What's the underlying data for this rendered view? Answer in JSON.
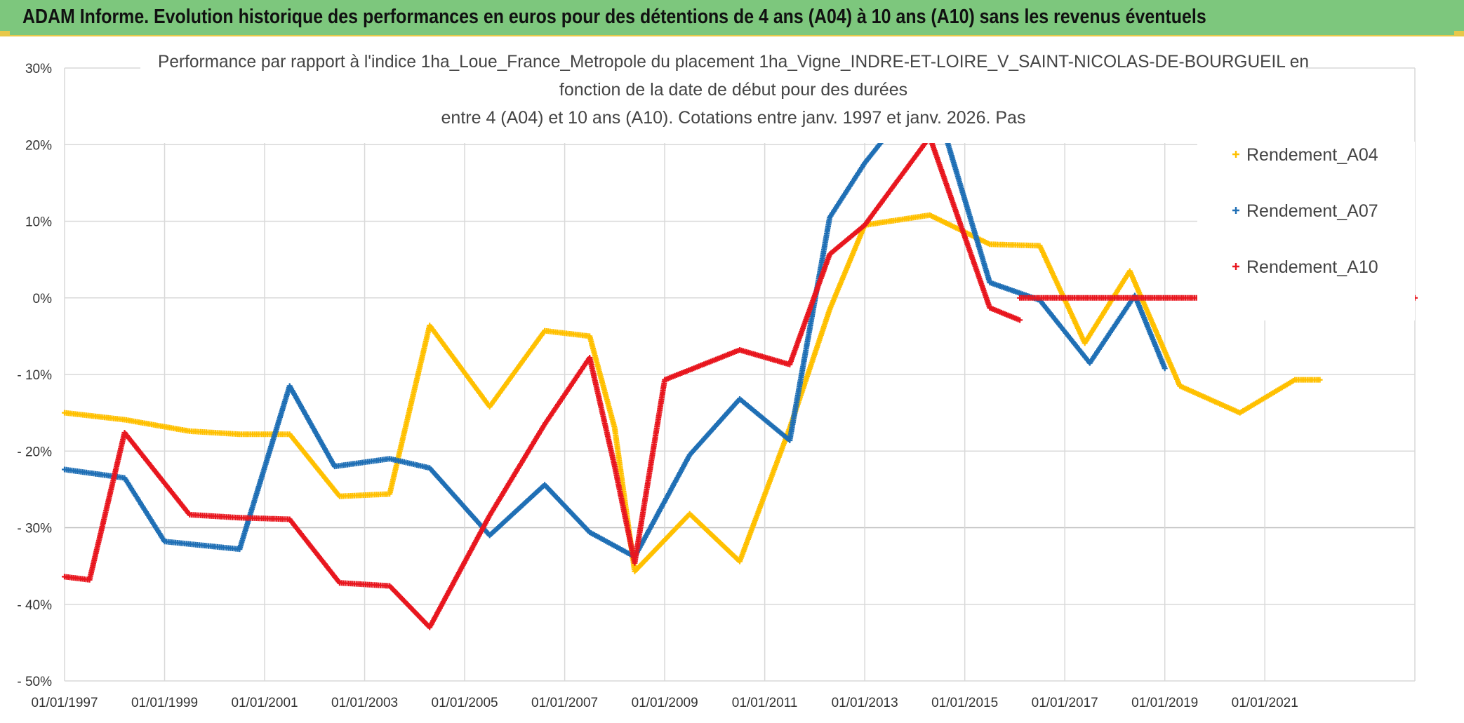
{
  "header": {
    "banner_title": "ADAM Informe. Evolution historique des performances en euros pour des détentions de 4 ans (A04) à 10 ans (A10) sans les revenus éventuels"
  },
  "chart_data": {
    "type": "line",
    "title_lines": [
      "Performance  par rapport à l'indice 1ha_Loue_France_Metropole  du placement 1ha_Vigne_INDRE-ET-LOIRE_V_SAINT-NICOLAS-DE-BOURGUEIL en",
      "fonction de la date de début pour des durées",
      "entre 4 (A04) et 10 ans (A10). Cotations entre janv. 1997 et janv. 2026. Pas"
    ],
    "y_ticks": [
      {
        "value": 30,
        "label": "30%"
      },
      {
        "value": 20,
        "label": "20%"
      },
      {
        "value": 10,
        "label": "10%"
      },
      {
        "value": 0,
        "label": "0%"
      },
      {
        "value": -10,
        "label": "- 10%"
      },
      {
        "value": -20,
        "label": "- 20%"
      },
      {
        "value": -30,
        "label": "- 30%"
      },
      {
        "value": -40,
        "label": "- 40%"
      },
      {
        "value": -50,
        "label": "- 50%"
      }
    ],
    "ylim": [
      -50,
      30
    ],
    "x_start_year": 1997,
    "x_end_year": 2024,
    "x_ticks": [
      {
        "year": 1997,
        "label": "01/01/1997"
      },
      {
        "year": 1999,
        "label": "01/01/1999"
      },
      {
        "year": 2001,
        "label": "01/01/2001"
      },
      {
        "year": 2003,
        "label": "01/01/2003"
      },
      {
        "year": 2005,
        "label": "01/01/2005"
      },
      {
        "year": 2007,
        "label": "01/01/2007"
      },
      {
        "year": 2009,
        "label": "01/01/2009"
      },
      {
        "year": 2011,
        "label": "01/01/2011"
      },
      {
        "year": 2013,
        "label": "01/01/2013"
      },
      {
        "year": 2015,
        "label": "01/01/2015"
      },
      {
        "year": 2017,
        "label": "01/01/2017"
      },
      {
        "year": 2019,
        "label": "01/01/2019"
      },
      {
        "year": 2021,
        "label": "01/01/2021"
      }
    ],
    "grid": true,
    "legend_position": "top-right",
    "series": [
      {
        "name": "Rendement_A04",
        "color": "#ffc000",
        "points": [
          [
            1997.0,
            -15.0
          ],
          [
            1998.2,
            -15.9
          ],
          [
            1999.5,
            -17.4
          ],
          [
            2000.5,
            -17.8
          ],
          [
            2001.5,
            -17.8
          ],
          [
            2002.5,
            -25.9
          ],
          [
            2003.5,
            -25.6
          ],
          [
            2004.3,
            -3.6
          ],
          [
            2005.5,
            -14.2
          ],
          [
            2006.6,
            -4.3
          ],
          [
            2007.5,
            -5.0
          ],
          [
            2008.0,
            -17.0
          ],
          [
            2008.4,
            -35.7
          ],
          [
            2009.5,
            -28.2
          ],
          [
            2010.5,
            -34.4
          ],
          [
            2011.5,
            -17.0
          ],
          [
            2012.3,
            -1.5
          ],
          [
            2013.0,
            9.5
          ],
          [
            2014.3,
            10.8
          ],
          [
            2015.5,
            7.0
          ],
          [
            2016.5,
            6.8
          ],
          [
            2017.4,
            -5.9
          ],
          [
            2018.3,
            3.5
          ],
          [
            2019.3,
            -11.5
          ],
          [
            2020.5,
            -15.0
          ],
          [
            2021.6,
            -10.7
          ],
          [
            2022.1,
            -10.7
          ]
        ]
      },
      {
        "name": "Rendement_A07",
        "color": "#1f6fb5",
        "points": [
          [
            1997.0,
            -22.4
          ],
          [
            1998.2,
            -23.5
          ],
          [
            1999.0,
            -31.8
          ],
          [
            2000.5,
            -32.8
          ],
          [
            2001.5,
            -11.5
          ],
          [
            2002.4,
            -22.0
          ],
          [
            2003.5,
            -21.0
          ],
          [
            2004.3,
            -22.2
          ],
          [
            2005.5,
            -31.0
          ],
          [
            2006.6,
            -24.4
          ],
          [
            2007.5,
            -30.6
          ],
          [
            2008.4,
            -33.8
          ],
          [
            2009.5,
            -20.5
          ],
          [
            2010.5,
            -13.2
          ],
          [
            2011.5,
            -18.6
          ],
          [
            2012.3,
            10.5
          ],
          [
            2013.0,
            17.6
          ],
          [
            2013.9,
            25.0
          ],
          [
            2014.6,
            21.5
          ],
          [
            2015.5,
            2.0
          ],
          [
            2016.5,
            -0.3
          ],
          [
            2017.5,
            -8.5
          ],
          [
            2018.4,
            0.3
          ],
          [
            2019.0,
            -9.2
          ]
        ]
      },
      {
        "name": "Rendement_A10",
        "color": "#e8161e",
        "points": [
          [
            1997.0,
            -36.4
          ],
          [
            1997.5,
            -36.8
          ],
          [
            1998.2,
            -17.6
          ],
          [
            1999.5,
            -28.3
          ],
          [
            2000.5,
            -28.7
          ],
          [
            2001.5,
            -28.9
          ],
          [
            2002.5,
            -37.2
          ],
          [
            2003.5,
            -37.6
          ],
          [
            2004.3,
            -43.0
          ],
          [
            2005.5,
            -28.4
          ],
          [
            2006.6,
            -16.5
          ],
          [
            2007.5,
            -7.8
          ],
          [
            2008.0,
            -22.0
          ],
          [
            2008.4,
            -34.6
          ],
          [
            2009.0,
            -10.7
          ],
          [
            2010.5,
            -6.8
          ],
          [
            2011.5,
            -8.7
          ],
          [
            2012.3,
            5.7
          ],
          [
            2013.0,
            9.5
          ],
          [
            2014.3,
            21.0
          ],
          [
            2015.5,
            -1.3
          ],
          [
            2016.1,
            -2.9
          ]
        ]
      },
      {
        "name": "Rendement_A10_flat",
        "color": "#e8161e",
        "points": [
          [
            2016.1,
            0.0
          ],
          [
            2024.0,
            0.0
          ]
        ]
      }
    ],
    "legend": [
      {
        "label": "Rendement_A04",
        "color": "#ffc000"
      },
      {
        "label": "Rendement_A07",
        "color": "#1f6fb5"
      },
      {
        "label": "Rendement_A10",
        "color": "#e8161e"
      }
    ]
  }
}
